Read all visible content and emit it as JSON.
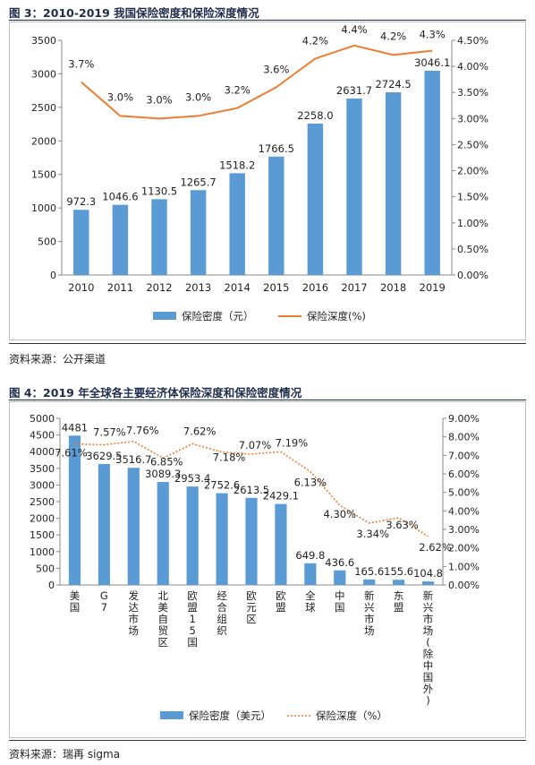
{
  "fig3": {
    "title": "图 3：2010-2019 我国保险密度和保险深度情况",
    "source": "资料来源：公开渠道"
  },
  "fig4": {
    "title": "图 4：2019 年全球各主要经济体保险深度和保险密度情况",
    "source": "资料来源：瑞再 sigma"
  },
  "colors": {
    "bar": "#5b9bd5",
    "line": "#ed7d31",
    "title": "#1f2d4d"
  },
  "chart_data": [
    {
      "type": "bar",
      "categories": [
        "2010",
        "2011",
        "2012",
        "2013",
        "2014",
        "2015",
        "2016",
        "2017",
        "2018",
        "2019"
      ],
      "series": [
        {
          "name": "保险密度（元）",
          "type": "bar",
          "axis": "left",
          "values": [
            972.3,
            1046.6,
            1130.5,
            1265.7,
            1518.2,
            1766.5,
            2258.0,
            2631.7,
            2724.5,
            3046.1
          ],
          "labels": [
            "972.3",
            "1046.6",
            "1130.5",
            "1265.7",
            "1518.2",
            "1766.5",
            "2258.0",
            "2631.7",
            "2724.5",
            "3046.1"
          ]
        },
        {
          "name": "保险深度(%)",
          "type": "line",
          "axis": "right",
          "values": [
            3.7,
            3.05,
            3.0,
            3.05,
            3.2,
            3.6,
            4.15,
            4.4,
            4.22,
            4.3
          ],
          "labels": [
            "3.7%",
            "3.0%",
            "3.0%",
            "3.0%",
            "3.2%",
            "3.6%",
            "4.2%",
            "4.4%",
            "4.2%",
            "4.3%"
          ]
        }
      ],
      "ylim_left": [
        0,
        3500
      ],
      "yticks_left": [
        "0",
        "500",
        "1000",
        "1500",
        "2000",
        "2500",
        "3000",
        "3500"
      ],
      "ylim_right": [
        0,
        4.5
      ],
      "yticks_right": [
        "0.00%",
        "0.50%",
        "1.00%",
        "1.50%",
        "2.00%",
        "2.50%",
        "3.00%",
        "3.50%",
        "4.00%",
        "4.50%"
      ],
      "legend_position": "bottom"
    },
    {
      "type": "bar",
      "categories": [
        "美国",
        "G7",
        "发达市场",
        "北美自贸区",
        "欧盟15国",
        "经合组织",
        "欧元区",
        "欧盟",
        "全球",
        "中国",
        "新兴市场",
        "东盟",
        "新兴市场(除中国外)"
      ],
      "series": [
        {
          "name": "保险密度（美元）",
          "type": "bar",
          "axis": "left",
          "values": [
            4481,
            3629.5,
            3516.7,
            3089.3,
            2953.4,
            2752.6,
            2613.5,
            2429.1,
            649.8,
            436.6,
            165.6,
            155.6,
            104.8
          ],
          "labels": [
            "4481",
            "3629.5",
            "3516.7",
            "3089.3",
            "2953.4",
            "2752.6",
            "2613.5",
            "2429.1",
            "649.8",
            "436.6",
            "165.6",
            "155.6",
            "104.8"
          ]
        },
        {
          "name": "保险深度（%）",
          "type": "line",
          "style": "dotted",
          "axis": "right",
          "values": [
            7.61,
            7.57,
            7.76,
            6.85,
            7.62,
            7.18,
            7.07,
            7.19,
            6.13,
            4.3,
            3.34,
            3.63,
            2.62
          ],
          "labels": [
            "7.61%",
            "7.57%",
            "7.76%",
            "6.85%",
            "7.62%",
            "7.18%",
            "7.07%",
            "7.19%",
            "6.13%",
            "4.30%",
            "3.34%",
            "3.63%",
            "2.62%"
          ]
        }
      ],
      "ylim_left": [
        0,
        5000
      ],
      "yticks_left": [
        "0",
        "500",
        "1000",
        "1500",
        "2000",
        "2500",
        "3000",
        "3500",
        "4000",
        "4500",
        "5000"
      ],
      "ylim_right": [
        0,
        9
      ],
      "yticks_right": [
        "0.00%",
        "1.00%",
        "2.00%",
        "3.00%",
        "4.00%",
        "5.00%",
        "6.00%",
        "7.00%",
        "8.00%",
        "9.00%"
      ],
      "legend_position": "bottom"
    }
  ]
}
